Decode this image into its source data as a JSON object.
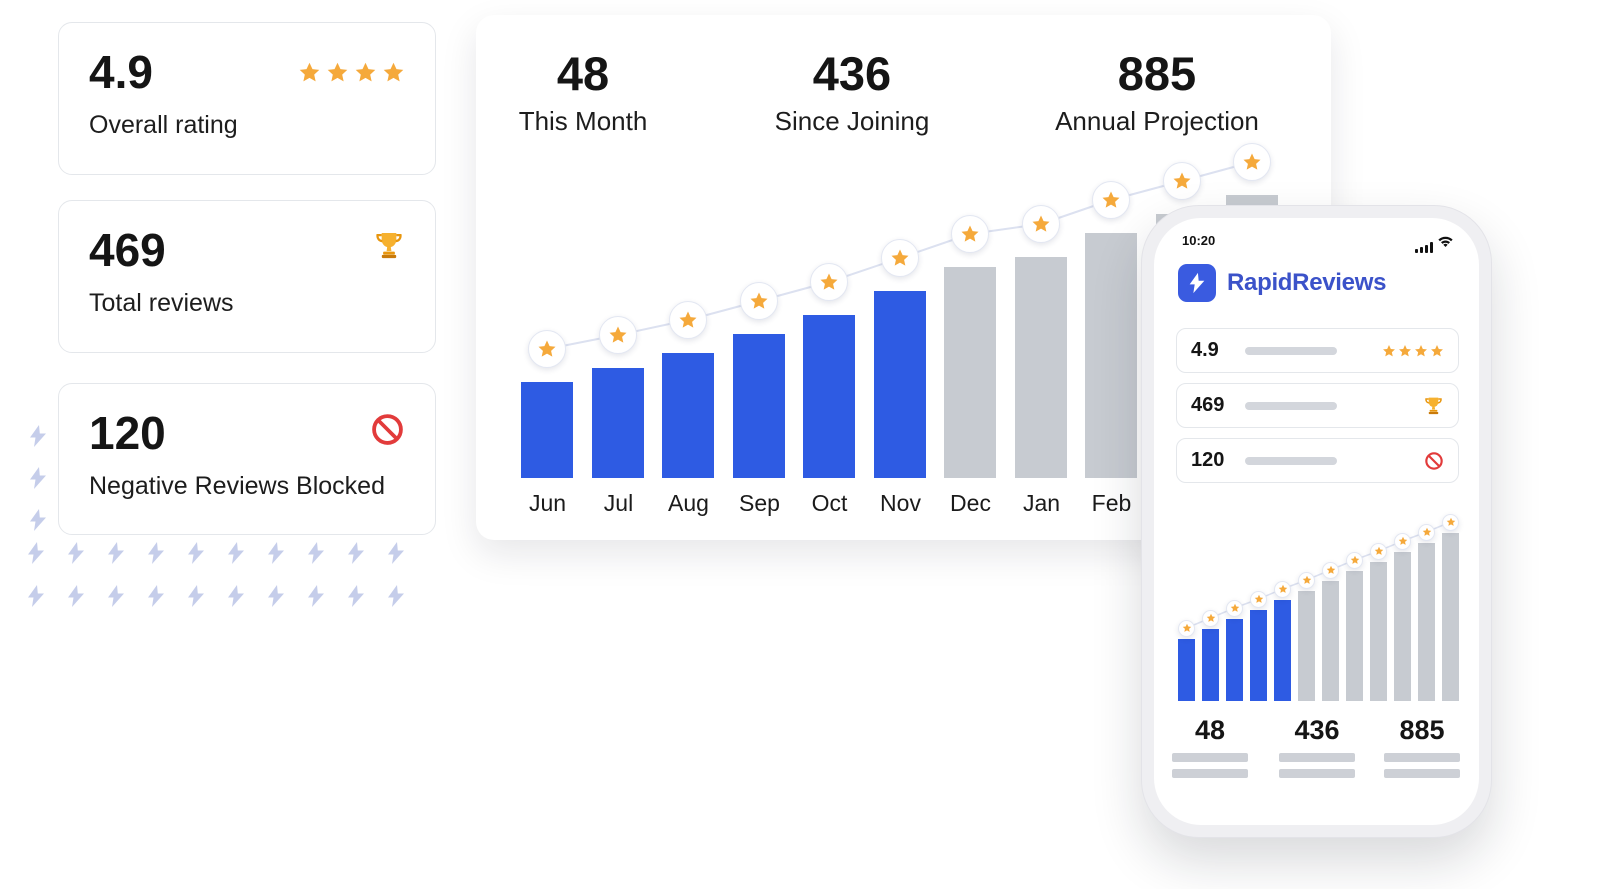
{
  "colors": {
    "blue": "#2E5BE3",
    "gray_bar": "#C7CBD1",
    "star": "#F5A93B",
    "badge_line": "#DCE1F0",
    "red": "#E23B3B",
    "brand_blue": "#3B52C9",
    "logo_square_blue": "#3A5BE0",
    "bolt_decor": "#C5CDEA",
    "text_dark": "#151515"
  },
  "stat_cards": [
    {
      "value": "4.9",
      "label": "Overall rating",
      "icon": "stars",
      "stars": 4
    },
    {
      "value": "469",
      "label": "Total reviews",
      "icon": "trophy"
    },
    {
      "value": "120",
      "label": "Negative Reviews Blocked",
      "icon": "blocked"
    }
  ],
  "dashboard": {
    "stats": [
      {
        "value": "48",
        "label": "This Month"
      },
      {
        "value": "436",
        "label": "Since Joining"
      },
      {
        "value": "885",
        "label": "Annual Projection"
      }
    ]
  },
  "chart_data": [
    {
      "id": "reviews-by-month",
      "type": "bar",
      "title": "",
      "xlabel": "",
      "ylabel": "",
      "categories": [
        "Jun",
        "Jul",
        "Aug",
        "Sep",
        "Oct",
        "Nov",
        "Dec",
        "Jan",
        "Feb"
      ],
      "values": [
        20,
        23,
        26,
        30,
        34,
        39,
        44,
        46,
        51
      ],
      "hidden_continuation_values": [
        55,
        59
      ],
      "actual_count": 6,
      "series_legend": [
        {
          "name": "Actual reviews (blue bars)",
          "months": [
            "Jun",
            "Jul",
            "Aug",
            "Sep",
            "Oct",
            "Nov"
          ]
        },
        {
          "name": "Projected reviews (gray bars)",
          "months": [
            "Dec",
            "Jan",
            "Feb"
          ]
        }
      ],
      "ylim": [
        0,
        60
      ],
      "grid": false,
      "annotation": "ascending star badges connected by a line above each bar"
    },
    {
      "id": "phone-mini-chart",
      "type": "bar",
      "title": "",
      "categories": [],
      "values": [
        13,
        15,
        17,
        19,
        21,
        23,
        25,
        27,
        29,
        31,
        33,
        35
      ],
      "hidden_continuation_values": [],
      "actual_count": 5,
      "ylim": [
        0,
        38
      ],
      "grid": false,
      "annotation": "miniature version of the main chart with small star badges"
    }
  ],
  "phone": {
    "time": "10:20",
    "brand": "RapidReviews",
    "rows": [
      {
        "value": "4.9",
        "icon": "stars",
        "stars": 4
      },
      {
        "value": "469",
        "icon": "trophy"
      },
      {
        "value": "120",
        "icon": "blocked"
      }
    ],
    "stats": [
      "48",
      "436",
      "885"
    ]
  },
  "decor": {
    "bolt_color": "#C5CDEA",
    "left_column_count": 3,
    "row_count": 2,
    "bolts_per_row": 10
  }
}
